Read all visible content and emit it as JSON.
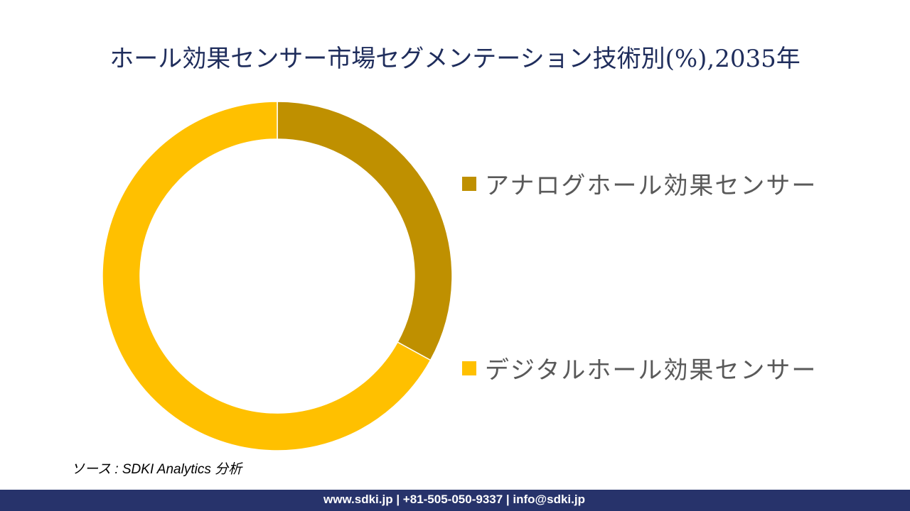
{
  "title": "ホール効果センサー市場セグメンテーション技術別(%),2035年",
  "legend": [
    {
      "label": "アナログホール効果センサー",
      "color": "#bf9000"
    },
    {
      "label": "デジタルホール効果センサー",
      "color": "#ffc000"
    }
  ],
  "source": "ソース : SDKI Analytics 分析",
  "footer": "www.sdki.jp | +81-505-050-9337 | info@sdki.jp",
  "chart_data": {
    "type": "pie",
    "subtype": "donut",
    "title": "ホール効果センサー市場セグメンテーション技術別(%),2035年",
    "categories": [
      "アナログホール効果センサー",
      "デジタルホール効果センサー"
    ],
    "values": [
      33,
      67
    ],
    "colors": [
      "#bf9000",
      "#ffc000"
    ],
    "unit": "%",
    "legend_position": "right",
    "data_labels": false
  }
}
